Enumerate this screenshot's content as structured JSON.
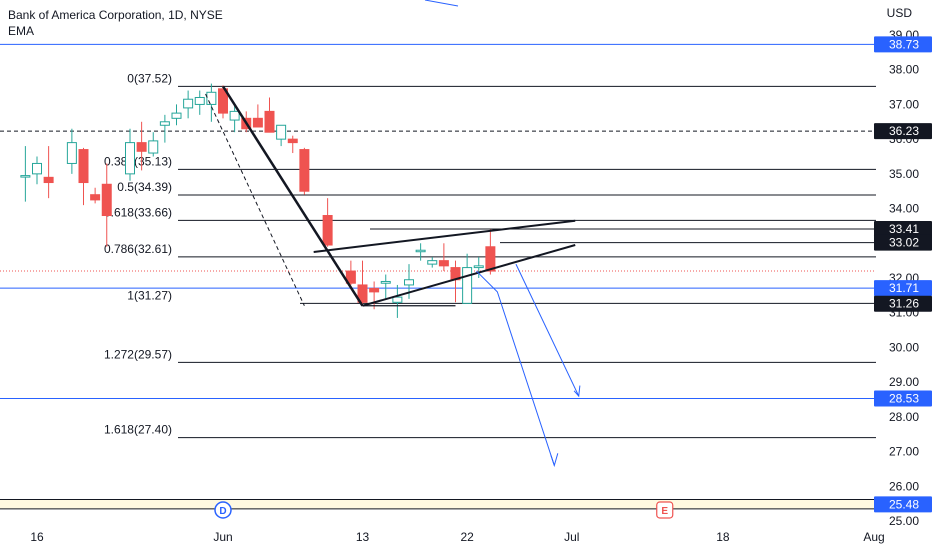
{
  "header": {
    "title": "Bank of America Corporation, 1D, NYSE",
    "indicator": "EMA",
    "currency": "USD"
  },
  "colors": {
    "up": "#26a69a",
    "down": "#ef5350",
    "blue": "#2962ff",
    "black": "#131722",
    "zone": "#fff9e0"
  },
  "chart_data": {
    "type": "candlestick",
    "y_ticks": [
      "25.00",
      "26.00",
      "27.00",
      "28.00",
      "29.00",
      "30.00",
      "31.00",
      "32.00",
      "33.00",
      "34.00",
      "35.00",
      "36.00",
      "37.00",
      "38.00",
      "39.00"
    ],
    "x_ticks": [
      {
        "label": "16",
        "day": 0
      },
      {
        "label": "Jun",
        "day": 16
      },
      {
        "label": "13",
        "day": 28
      },
      {
        "label": "22",
        "day": 37
      },
      {
        "label": "Jul",
        "day": 46
      },
      {
        "label": "18",
        "day": 59
      },
      {
        "label": "Aug",
        "day": 72
      }
    ],
    "ylim": [
      25.0,
      39.0
    ],
    "candles": [
      {
        "d": -1,
        "o": 34.95,
        "h": 35.8,
        "l": 34.2,
        "c": 34.95
      },
      {
        "d": 0,
        "o": 35.0,
        "h": 35.5,
        "l": 34.7,
        "c": 35.3
      },
      {
        "d": 1,
        "o": 34.9,
        "h": 35.8,
        "l": 34.3,
        "c": 34.75
      },
      {
        "d": 3,
        "o": 35.3,
        "h": 36.3,
        "l": 35.0,
        "c": 35.9
      },
      {
        "d": 4,
        "o": 35.7,
        "h": 35.75,
        "l": 34.1,
        "c": 34.75
      },
      {
        "d": 5,
        "o": 34.4,
        "h": 34.6,
        "l": 34.15,
        "c": 34.25
      },
      {
        "d": 6,
        "o": 34.7,
        "h": 35.3,
        "l": 32.9,
        "c": 33.8
      },
      {
        "d": 8,
        "o": 35.0,
        "h": 36.3,
        "l": 34.8,
        "c": 35.9
      },
      {
        "d": 9,
        "o": 35.9,
        "h": 36.5,
        "l": 35.1,
        "c": 35.65
      },
      {
        "d": 10,
        "o": 35.6,
        "h": 36.2,
        "l": 35.5,
        "c": 35.95
      },
      {
        "d": 11,
        "o": 36.4,
        "h": 36.7,
        "l": 35.9,
        "c": 36.5
      },
      {
        "d": 12,
        "o": 36.6,
        "h": 37.0,
        "l": 36.4,
        "c": 36.75
      },
      {
        "d": 13,
        "o": 36.9,
        "h": 37.4,
        "l": 36.6,
        "c": 37.15
      },
      {
        "d": 14,
        "o": 37.0,
        "h": 37.4,
        "l": 36.7,
        "c": 37.2
      },
      {
        "d": 15,
        "o": 37.0,
        "h": 37.6,
        "l": 36.5,
        "c": 37.35
      },
      {
        "d": 16,
        "o": 37.45,
        "h": 37.55,
        "l": 36.6,
        "c": 36.75
      },
      {
        "d": 17,
        "o": 36.55,
        "h": 37.0,
        "l": 36.2,
        "c": 36.8
      },
      {
        "d": 18,
        "o": 36.6,
        "h": 36.8,
        "l": 36.2,
        "c": 36.3
      },
      {
        "d": 19,
        "o": 36.6,
        "h": 37.0,
        "l": 36.4,
        "c": 36.35
      },
      {
        "d": 20,
        "o": 36.8,
        "h": 37.2,
        "l": 36.2,
        "c": 36.2
      },
      {
        "d": 21,
        "o": 36.0,
        "h": 36.35,
        "l": 35.8,
        "c": 36.4
      },
      {
        "d": 22,
        "o": 36.0,
        "h": 36.1,
        "l": 35.6,
        "c": 35.9
      },
      {
        "d": 23,
        "o": 35.7,
        "h": 35.75,
        "l": 34.4,
        "c": 34.5
      },
      {
        "d": 25,
        "o": 33.8,
        "h": 34.3,
        "l": 32.9,
        "c": 32.95
      },
      {
        "d": 27,
        "o": 32.2,
        "h": 32.5,
        "l": 31.8,
        "c": 31.85
      },
      {
        "d": 28,
        "o": 31.8,
        "h": 32.5,
        "l": 31.25,
        "c": 31.3
      },
      {
        "d": 29,
        "o": 31.7,
        "h": 31.9,
        "l": 31.1,
        "c": 31.6
      },
      {
        "d": 30,
        "o": 31.85,
        "h": 32.1,
        "l": 31.4,
        "c": 31.9
      },
      {
        "d": 31,
        "o": 31.3,
        "h": 31.8,
        "l": 30.85,
        "c": 31.45
      },
      {
        "d": 32,
        "o": 31.8,
        "h": 32.4,
        "l": 31.4,
        "c": 31.95
      },
      {
        "d": 33,
        "o": 32.8,
        "h": 33.0,
        "l": 32.5,
        "c": 32.8
      },
      {
        "d": 34,
        "o": 32.4,
        "h": 32.6,
        "l": 32.3,
        "c": 32.5
      },
      {
        "d": 35,
        "o": 32.5,
        "h": 33.0,
        "l": 32.2,
        "c": 32.35
      },
      {
        "d": 36,
        "o": 32.3,
        "h": 32.5,
        "l": 31.3,
        "c": 31.95
      },
      {
        "d": 37,
        "o": 31.27,
        "h": 32.7,
        "l": 31.27,
        "c": 32.3
      },
      {
        "d": 38,
        "o": 32.3,
        "h": 32.6,
        "l": 32.0,
        "c": 32.35
      },
      {
        "d": 39,
        "o": 32.9,
        "h": 33.4,
        "l": 32.1,
        "c": 32.2
      }
    ],
    "fib_levels": [
      {
        "label": "0(37.52)",
        "price": 37.52
      },
      {
        "label": "0.382(35.13)",
        "price": 35.13
      },
      {
        "label": "0.5(34.39)",
        "price": 34.39
      },
      {
        "label": "0.618(33.66)",
        "price": 33.66
      },
      {
        "label": "0.786(32.61)",
        "price": 32.61
      },
      {
        "label": "1(31.27)",
        "price": 31.27
      },
      {
        "label": "1.272(29.57)",
        "price": 29.57
      },
      {
        "label": "1.618(27.40)",
        "price": 27.4
      }
    ],
    "price_tags": [
      {
        "label": "38.73",
        "price": 38.73,
        "color": "blue"
      },
      {
        "label": "36.23",
        "price": 36.23,
        "color": "black"
      },
      {
        "label": "33.41",
        "price": 33.41,
        "color": "black"
      },
      {
        "label": "33.02",
        "price": 33.02,
        "color": "black"
      },
      {
        "label": "31.71",
        "price": 31.71,
        "color": "blue"
      },
      {
        "label": "31.26",
        "price": 31.26,
        "color": "black"
      },
      {
        "label": "28.53",
        "price": 28.53,
        "color": "blue"
      },
      {
        "label": "25.48",
        "price": 25.48,
        "color": "blue"
      }
    ],
    "current_price": 32.2,
    "events": [
      {
        "label": "D",
        "day": 16,
        "color": "#2962ff"
      },
      {
        "label": "E",
        "day": 54,
        "color": "#ef5350"
      }
    ]
  }
}
